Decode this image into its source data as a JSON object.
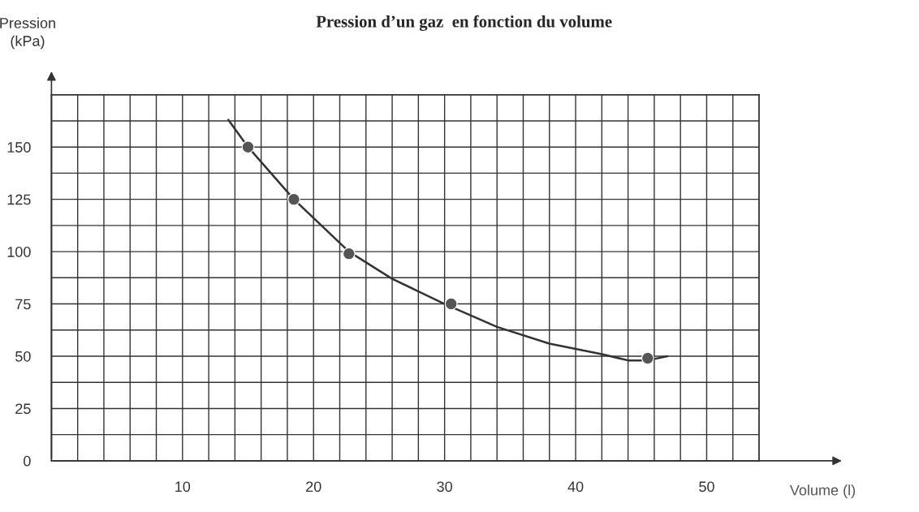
{
  "chart_data": {
    "type": "line",
    "title": "Pression d’un gaz  en fonction du volume",
    "xlabel": "Volume (l)",
    "ylabel": "Pression\n(kPa)",
    "series": [
      {
        "type": "scatter",
        "marker": "circle",
        "color": "#555555",
        "x": [
          15,
          18.5,
          22.7,
          30.5,
          45.5
        ],
        "values": [
          150,
          125,
          99,
          75,
          49
        ]
      },
      {
        "color": "#333333",
        "x": [
          13.5,
          15,
          18.5,
          22.7,
          26,
          30,
          34,
          38,
          42,
          44,
          45.5,
          47
        ],
        "values": [
          163,
          150,
          125,
          100,
          87,
          75,
          64,
          56,
          51,
          48,
          48,
          50
        ]
      }
    ],
    "xlim": [
      0,
      54
    ],
    "ylim": [
      0,
      175
    ],
    "xticks": [
      {
        "value": 0,
        "label": null
      },
      {
        "value": 2,
        "label": null
      },
      {
        "value": 4,
        "label": null
      },
      {
        "value": 6,
        "label": null
      },
      {
        "value": 8,
        "label": null
      },
      10,
      {
        "value": 12,
        "label": null
      },
      {
        "value": 14,
        "label": null
      },
      {
        "value": 16,
        "label": null
      },
      {
        "value": 18,
        "label": null
      },
      20,
      {
        "value": 22,
        "label": null
      },
      {
        "value": 24,
        "label": null
      },
      {
        "value": 26,
        "label": null
      },
      {
        "value": 28,
        "label": null
      },
      30,
      {
        "value": 32,
        "label": null
      },
      {
        "value": 34,
        "label": null
      },
      {
        "value": 36,
        "label": null
      },
      {
        "value": 38,
        "label": null
      },
      40,
      {
        "value": 42,
        "label": null
      },
      {
        "value": 44,
        "label": null
      },
      {
        "value": 46,
        "label": null
      },
      {
        "value": 48,
        "label": null
      },
      50,
      {
        "value": 52,
        "label": null
      },
      {
        "value": 54,
        "label": null
      }
    ],
    "yticks": [
      0,
      {
        "value": 12.5,
        "label": null
      },
      25,
      {
        "value": 37.5,
        "label": null
      },
      50,
      {
        "value": 62.5,
        "label": null
      },
      75,
      {
        "value": 87.5,
        "label": null
      },
      100,
      {
        "value": 112.5,
        "label": null
      },
      125,
      {
        "value": 137.5,
        "label": null
      },
      150,
      {
        "value": 162.5,
        "label": null
      },
      {
        "value": 175,
        "label": null
      }
    ],
    "grid": true,
    "line_style": "solid"
  }
}
